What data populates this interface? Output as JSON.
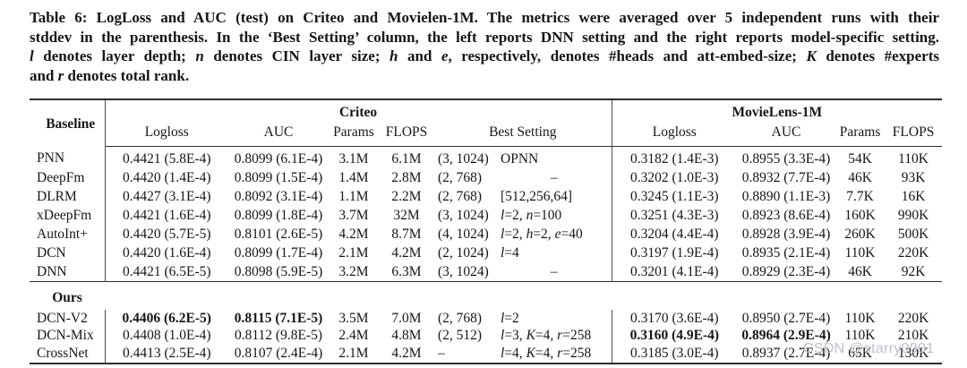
{
  "caption": {
    "lines": [
      "Table 6: LogLoss and AUC (test) on Criteo and Movielen-1M. The metrics were averaged over 5 independent runs with their",
      "stddev in the parenthesis. In the ‘Best Setting’ column, the left reports DNN setting and the right reports model-specific setting.",
      "*l* denotes layer depth; *n* denotes CIN layer size; *h* and *e*, respectively, denotes #heads and att-embed-size; *K* denotes #experts",
      "and *r* denotes total rank."
    ]
  },
  "table": {
    "baseline_header": "Baseline",
    "groups": [
      "Criteo",
      "MovieLens-1M"
    ],
    "sub_headers": [
      "Logloss",
      "AUC",
      "Params",
      "FLOPS",
      "Best Setting",
      "Logloss",
      "AUC",
      "Params",
      "FLOPS"
    ],
    "ours_label": "Ours",
    "baseline_rows": [
      {
        "name": "PNN",
        "c_logloss": "0.4421 (5.8E-4)",
        "c_auc": "0.8099 (6.1E-4)",
        "c_params": "3.1M",
        "c_flops": "6.1M",
        "bs_dnn": "(3, 1024)",
        "bs_model": "OPNN",
        "m_logloss": "0.3182 (1.4E-3)",
        "m_auc": "0.8955 (3.3E-4)",
        "m_params": "54K",
        "m_flops": "110K"
      },
      {
        "name": "DeepFm",
        "c_logloss": "0.4420 (1.4E-4)",
        "c_auc": "0.8099 (1.5E-4)",
        "c_params": "1.4M",
        "c_flops": "2.8M",
        "bs_dnn": "(2, 768)",
        "bs_model": "–",
        "m_logloss": "0.3202 (1.0E-3)",
        "m_auc": "0.8932 (7.7E-4)",
        "m_params": "46K",
        "m_flops": "93K"
      },
      {
        "name": "DLRM",
        "c_logloss": "0.4427 (3.1E-4)",
        "c_auc": "0.8092 (3.1E-4)",
        "c_params": "1.1M",
        "c_flops": "2.2M",
        "bs_dnn": "(2, 768)",
        "bs_model": "[512,256,64]",
        "m_logloss": "0.3245 (1.1E-3)",
        "m_auc": "0.8890 (1.1E-3)",
        "m_params": "7.7K",
        "m_flops": "16K"
      },
      {
        "name": "xDeepFm",
        "c_logloss": "0.4421 (1.6E-4)",
        "c_auc": "0.8099 (1.8E-4)",
        "c_params": "3.7M",
        "c_flops": "32M",
        "bs_dnn": "(3, 1024)",
        "bs_model": "*l*=2, *n*=100",
        "m_logloss": "0.3251 (4.3E-3)",
        "m_auc": "0.8923 (8.6E-4)",
        "m_params": "160K",
        "m_flops": "990K"
      },
      {
        "name": "AutoInt+",
        "c_logloss": "0.4420 (5.7E-5)",
        "c_auc": "0.8101 (2.6E-5)",
        "c_params": "4.2M",
        "c_flops": "8.7M",
        "bs_dnn": "(4, 1024)",
        "bs_model": "*l*=2, *h*=2, *e*=40",
        "m_logloss": "0.3204 (4.4E-4)",
        "m_auc": "0.8928 (3.9E-4)",
        "m_params": "260K",
        "m_flops": "500K"
      },
      {
        "name": "DCN",
        "c_logloss": "0.4420 (1.6E-4)",
        "c_auc": "0.8099 (1.7E-4)",
        "c_params": "2.1M",
        "c_flops": "4.2M",
        "bs_dnn": "(2, 1024)",
        "bs_model": "*l*=4",
        "m_logloss": "0.3197 (1.9E-4)",
        "m_auc": "0.8935 (2.1E-4)",
        "m_params": "110K",
        "m_flops": "220K"
      },
      {
        "name": "DNN",
        "c_logloss": "0.4421 (6.5E-5)",
        "c_auc": "0.8098 (5.9E-5)",
        "c_params": "3.2M",
        "c_flops": "6.3M",
        "bs_dnn": "(3, 1024)",
        "bs_model": "–",
        "m_logloss": "0.3201 (4.1E-4)",
        "m_auc": "0.8929 (2.3E-4)",
        "m_params": "46K",
        "m_flops": "92K"
      }
    ],
    "ours_rows": [
      {
        "name": "DCN-V2",
        "c_logloss": "0.4406 (6.2E-5)",
        "c_auc": "0.8115 (7.1E-5)",
        "c_params": "3.5M",
        "c_flops": "7.0M",
        "bs_dnn": "(2, 768)",
        "bs_model": "*l*=2",
        "m_logloss": "0.3170 (3.6E-4)",
        "m_auc": "0.8950 (2.7E-4)",
        "m_params": "110K",
        "m_flops": "220K",
        "bold": [
          "c_logloss",
          "c_auc"
        ]
      },
      {
        "name": "DCN-Mix",
        "c_logloss": "0.4408 (1.0E-4)",
        "c_auc": "0.8112 (9.8E-5)",
        "c_params": "2.4M",
        "c_flops": "4.8M",
        "bs_dnn": "(2, 512)",
        "bs_model": "*l*=3, *K*=4, *r*=258",
        "m_logloss": "0.3160 (4.9E-4)",
        "m_auc": "0.8964 (2.9E-4)",
        "m_params": "110K",
        "m_flops": "210K",
        "bold": [
          "m_logloss",
          "m_auc"
        ]
      },
      {
        "name": "CrossNet",
        "c_logloss": "0.4413 (2.5E-4)",
        "c_auc": "0.8107 (2.4E-4)",
        "c_params": "2.1M",
        "c_flops": "4.2M",
        "bs_dnn": "–",
        "bs_model": "*l*=4, *K*=4, *r*=258",
        "m_logloss": "0.3185 (3.0E-4)",
        "m_auc": "0.8937 (2.7E-4)",
        "m_params": "65K",
        "m_flops": "130K"
      }
    ]
  },
  "watermark": {
    "text": "CSDN @starry0001"
  },
  "colors": {
    "watermark": "#c4bcc8",
    "text": "#161616",
    "rule": "#2e2e2e",
    "background": "#ffffff"
  }
}
